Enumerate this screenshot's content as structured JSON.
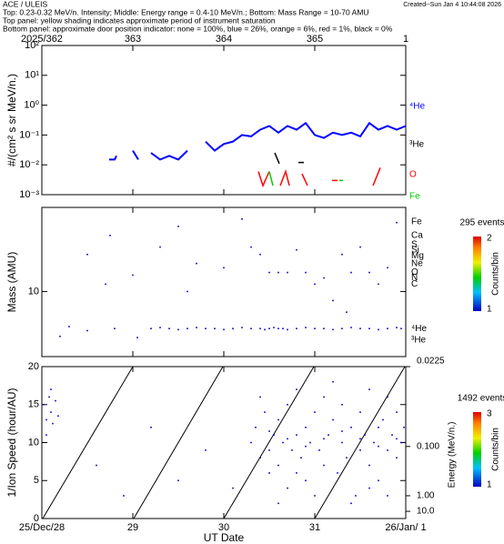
{
  "header": {
    "title": "ACE / ULEIS",
    "lines": [
      "Top: 0.23-0.32 MeV/n. Intensity; Middle: Energy range = 0.4-10 MeV/n.; Bottom: Mass Range = 10-70 AMU",
      "Top panel:  yellow shading indicates approximate period of instrument saturation",
      "Bottom panel: approximate door position indicator:  none = 100%, blue = 26%, orange = 6%, red = 1%, black = 0%"
    ],
    "created": "Created--Sun Jan  4 10:44:08 2026"
  },
  "chart_data": [
    {
      "type": "line",
      "ylabel": "#/(cm² s sr MeV/n.)",
      "log_y": true,
      "xlim": [
        0,
        4
      ],
      "xticks": [
        {
          "value": 0,
          "label": "2025/362"
        },
        {
          "value": 1,
          "label": "363"
        },
        {
          "value": 2,
          "label": "364"
        },
        {
          "value": 3,
          "label": "365"
        },
        {
          "value": 4,
          "label": "1"
        }
      ],
      "ylim": [
        0.001,
        100
      ],
      "yticks": [
        {
          "value": 0.001,
          "label": "10⁻³"
        },
        {
          "value": 0.01,
          "label": "10⁻²"
        },
        {
          "value": 0.1,
          "label": "10⁻¹"
        },
        {
          "value": 1,
          "label": "10⁰"
        },
        {
          "value": 10,
          "label": "10¹"
        },
        {
          "value": 100,
          "label": "10²"
        }
      ],
      "series": [
        {
          "name": "⁴He",
          "color": "#0000ff",
          "x": [
            0.74,
            0.8,
            0.82,
            0.9,
            1.0,
            1.06,
            1.1,
            1.2,
            1.3,
            1.4,
            1.5,
            1.6,
            1.7,
            1.8,
            1.9,
            2.0,
            2.1,
            2.2,
            2.3,
            2.4,
            2.5,
            2.6,
            2.7,
            2.8,
            2.9,
            3.0,
            3.1,
            3.2,
            3.3,
            3.4,
            3.5,
            3.6,
            3.7,
            3.8,
            3.9,
            4.0
          ],
          "values": [
            0.015,
            0.015,
            0.02,
            null,
            0.03,
            0.015,
            null,
            0.025,
            0.015,
            0.02,
            0.015,
            0.03,
            null,
            0.06,
            0.03,
            0.05,
            0.06,
            0.1,
            0.09,
            0.15,
            0.2,
            0.12,
            0.2,
            0.15,
            0.25,
            0.1,
            0.08,
            0.12,
            0.1,
            0.12,
            0.09,
            0.25,
            0.15,
            0.2,
            0.15,
            0.2
          ]
        },
        {
          "name": "³He",
          "color": "#000000",
          "x": [
            2.56,
            2.61,
            2.7,
            2.82,
            2.88
          ],
          "values": [
            0.025,
            0.011,
            null,
            0.012,
            0.012
          ]
        },
        {
          "name": "O",
          "color": "#ff0000",
          "x": [
            2.38,
            2.43,
            2.5,
            2.55,
            2.62,
            2.68,
            2.72,
            2.78,
            2.86,
            2.92,
            3.0,
            3.19,
            3.25,
            3.4,
            3.64,
            3.72
          ],
          "values": [
            0.006,
            0.002,
            0.006,
            null,
            0.002,
            0.006,
            0.002,
            null,
            0.005,
            0.002,
            null,
            0.003,
            0.003,
            null,
            0.002,
            0.008
          ]
        },
        {
          "name": "Fe",
          "color": "#00cc00",
          "x": [
            2.5,
            2.54,
            2.6,
            3.27,
            3.31
          ],
          "values": [
            0.006,
            0.002,
            null,
            0.003,
            0.003
          ]
        }
      ]
    },
    {
      "type": "scatter",
      "ylabel": "Mass (AMU)",
      "log_y": true,
      "color": "#0000cc",
      "xlim": [
        0,
        4
      ],
      "ylim": [
        2,
        80
      ],
      "yticks": [
        10
      ],
      "x": [
        0.3,
        0.5,
        0.8,
        1.2,
        1.3,
        1.4,
        1.5,
        1.6,
        1.7,
        1.8,
        1.9,
        2.0,
        2.1,
        2.2,
        2.3,
        2.4,
        2.45,
        2.5,
        2.55,
        2.6,
        2.65,
        2.7,
        2.8,
        2.9,
        3.0,
        3.1,
        3.2,
        3.3,
        3.4,
        3.5,
        3.6,
        3.7,
        3.8,
        3.9,
        3.95,
        0.2,
        0.5,
        0.7,
        0.75,
        1.0,
        1.3,
        1.5,
        1.6,
        1.7,
        2.0,
        2.3,
        2.4,
        2.5,
        2.6,
        2.7,
        2.8,
        2.9,
        3.0,
        3.1,
        3.2,
        3.3,
        3.4,
        3.5,
        3.6,
        3.7,
        3.8,
        3.9,
        2.2,
        3.35,
        1.05
      ],
      "values": [
        4.2,
        3.8,
        4,
        4,
        4.1,
        4,
        3.9,
        4,
        4.1,
        4,
        4,
        3.9,
        4,
        4.1,
        4,
        4,
        3.9,
        4,
        4.1,
        4,
        4,
        3.9,
        4,
        4.1,
        4,
        4,
        3.9,
        4,
        4.1,
        4,
        4,
        3.9,
        4,
        4.1,
        4,
        3.3,
        25,
        12,
        40,
        15,
        30,
        50,
        10,
        20,
        18,
        30,
        25,
        16,
        16,
        16,
        28,
        16,
        12,
        14,
        8,
        25,
        16,
        30,
        16,
        12,
        18,
        55,
        60,
        6,
        3.2
      ],
      "element_labels": [
        {
          "value": 56,
          "label": "Fe"
        },
        {
          "value": 40,
          "label": "Ca"
        },
        {
          "value": 32,
          "label": "S"
        },
        {
          "value": 28,
          "label": "Si"
        },
        {
          "value": 24,
          "label": "Mg"
        },
        {
          "value": 20,
          "label": "Ne"
        },
        {
          "value": 16,
          "label": "O"
        },
        {
          "value": 14,
          "label": "N"
        },
        {
          "value": 12,
          "label": "C"
        },
        {
          "value": 4,
          "label": "⁴He"
        },
        {
          "value": 3,
          "label": "³He"
        }
      ],
      "colorbar": {
        "events": "295 events",
        "label": "Counts/bin",
        "ticks": [
          1,
          2
        ]
      }
    },
    {
      "type": "scatter",
      "ylabel": "1/Ion Speed (hour/AU)",
      "xlabel": "UT Date",
      "color": "#0000cc",
      "xlim": [
        0,
        4
      ],
      "xticks": [
        {
          "value": 0,
          "label": "25/Dec/28"
        },
        {
          "value": 1,
          "label": "29"
        },
        {
          "value": 2,
          "label": "30"
        },
        {
          "value": 3,
          "label": "31"
        },
        {
          "value": 4,
          "label": "26/Jan/ 1"
        }
      ],
      "ylim": [
        0,
        20
      ],
      "yticks": [
        0,
        5,
        10,
        15,
        20
      ],
      "y2label": "Energy (MeV/n.)",
      "y2ticks": [
        0.0225,
        {
          "value": 0.1,
          "label": "0.100"
        },
        {
          "value": 1,
          "label": "1.00"
        },
        {
          "value": 10,
          "label": "10.0"
        }
      ],
      "x": [
        0.02,
        0.05,
        0.08,
        0.1,
        0.12,
        0.15,
        0.18,
        0.05,
        0.1,
        0.6,
        0.9,
        1.2,
        1.5,
        1.8,
        2.1,
        2.3,
        2.35,
        2.4,
        2.45,
        2.5,
        2.5,
        2.55,
        2.6,
        2.6,
        2.65,
        2.7,
        2.7,
        2.75,
        2.8,
        2.8,
        2.85,
        2.9,
        2.9,
        2.95,
        3.0,
        3.05,
        3.1,
        3.1,
        3.15,
        3.2,
        3.25,
        3.3,
        3.3,
        3.35,
        3.4,
        3.45,
        3.5,
        3.5,
        3.55,
        3.6,
        3.6,
        3.65,
        3.7,
        3.7,
        3.75,
        3.8,
        3.8,
        3.85,
        3.9,
        3.9,
        3.95,
        3.98,
        2.4,
        2.6,
        2.8,
        3.0,
        3.2,
        3.4,
        3.6,
        3.8,
        2.5,
        2.7,
        2.9,
        3.1,
        3.3,
        3.5,
        3.7,
        3.9
      ],
      "values": [
        15,
        13,
        16,
        14,
        12.5,
        15.5,
        13.5,
        11,
        17,
        7,
        3,
        12,
        5,
        9,
        4,
        10,
        12,
        8,
        14,
        9,
        6,
        11,
        13,
        7,
        10,
        15,
        4,
        9,
        11,
        17,
        8,
        12,
        5,
        10,
        14,
        9,
        7,
        16,
        11,
        13,
        6,
        10,
        15,
        8,
        12,
        3,
        9,
        14,
        11,
        7,
        17,
        10,
        12,
        5,
        13,
        9,
        16,
        11,
        8,
        14,
        10,
        12,
        16,
        2,
        6,
        3,
        18,
        2,
        4,
        3,
        11.5,
        10.5,
        9.5,
        10.5,
        11.5,
        10.5,
        9.5,
        10.5
      ],
      "colorbar": {
        "events": "1492 events",
        "label": "Counts/bin",
        "ticks": [
          1,
          3
        ]
      }
    }
  ]
}
